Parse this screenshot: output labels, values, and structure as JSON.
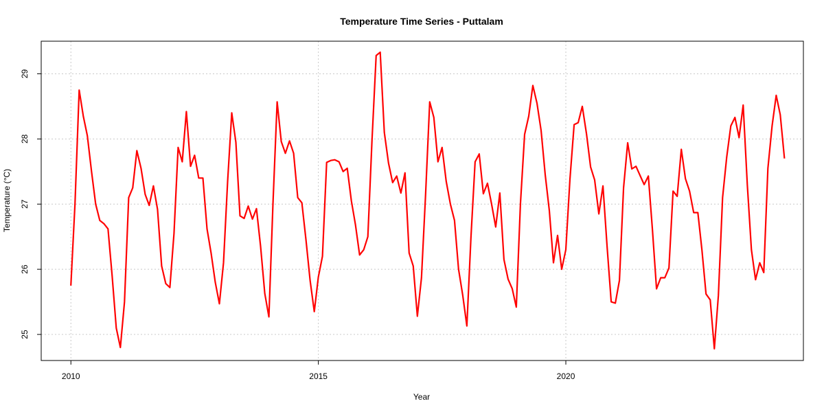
{
  "chart_data": {
    "type": "line",
    "title": "Temperature Time Series - Puttalam",
    "xlabel": "Year",
    "ylabel": "Temperature (°C)",
    "xlim": [
      2009.4,
      2024.8
    ],
    "ylim": [
      24.6,
      29.5
    ],
    "x_ticks": [
      2010,
      2015,
      2020
    ],
    "y_ticks": [
      25,
      26,
      27,
      28,
      29
    ],
    "grid": true,
    "line_color": "#ff0000",
    "series": [
      {
        "x": [
          2010.0,
          2010.083,
          2010.167,
          2010.25,
          2010.333,
          2010.417,
          2010.5,
          2010.583,
          2010.667,
          2010.75,
          2010.833,
          2010.917,
          2011.0,
          2011.083,
          2011.167,
          2011.25,
          2011.333,
          2011.417,
          2011.5,
          2011.583,
          2011.667,
          2011.75,
          2011.833,
          2011.917,
          2012.0,
          2012.083,
          2012.167,
          2012.25,
          2012.333,
          2012.417,
          2012.5,
          2012.583,
          2012.667,
          2012.75,
          2012.833,
          2012.917,
          2013.0,
          2013.083,
          2013.167,
          2013.25,
          2013.333,
          2013.417,
          2013.5,
          2013.583,
          2013.667,
          2013.75,
          2013.833,
          2013.917,
          2014.0,
          2014.083,
          2014.167,
          2014.25,
          2014.333,
          2014.417,
          2014.5,
          2014.583,
          2014.667,
          2014.75,
          2014.833,
          2014.917,
          2015.0,
          2015.083,
          2015.167,
          2015.25,
          2015.333,
          2015.417,
          2015.5,
          2015.583,
          2015.667,
          2015.75,
          2015.833,
          2015.917,
          2016.0,
          2016.083,
          2016.167,
          2016.25,
          2016.333,
          2016.417,
          2016.5,
          2016.583,
          2016.667,
          2016.75,
          2016.833,
          2016.917,
          2017.0,
          2017.083,
          2017.167,
          2017.25,
          2017.333,
          2017.417,
          2017.5,
          2017.583,
          2017.667,
          2017.75,
          2017.833,
          2017.917,
          2018.0,
          2018.083,
          2018.167,
          2018.25,
          2018.333,
          2018.417,
          2018.5,
          2018.583,
          2018.667,
          2018.75,
          2018.833,
          2018.917,
          2019.0,
          2019.083,
          2019.167,
          2019.25,
          2019.333,
          2019.417,
          2019.5,
          2019.583,
          2019.667,
          2019.75,
          2019.833,
          2019.917,
          2020.0,
          2020.083,
          2020.167,
          2020.25,
          2020.333,
          2020.417,
          2020.5,
          2020.583,
          2020.667,
          2020.75,
          2020.833,
          2020.917,
          2021.0,
          2021.083,
          2021.167,
          2021.25,
          2021.333,
          2021.417,
          2021.5,
          2021.583,
          2021.667,
          2021.75,
          2021.833,
          2021.917,
          2022.0,
          2022.083,
          2022.167,
          2022.25,
          2022.333,
          2022.417,
          2022.5,
          2022.583,
          2022.667,
          2022.75,
          2022.833,
          2022.917,
          2023.0,
          2023.083,
          2023.167,
          2023.25,
          2023.333,
          2023.417,
          2023.5,
          2023.583,
          2023.667,
          2023.75,
          2023.833,
          2023.917,
          2024.0,
          2024.083,
          2024.167,
          2024.25,
          2024.333,
          2024.417
        ],
        "y": [
          25.75,
          27.0,
          28.75,
          28.35,
          28.05,
          27.5,
          27.0,
          26.75,
          26.7,
          26.62,
          25.9,
          25.1,
          24.8,
          25.5,
          27.1,
          27.25,
          27.82,
          27.55,
          27.15,
          26.98,
          27.28,
          26.92,
          26.05,
          25.78,
          25.72,
          26.55,
          27.87,
          27.65,
          28.42,
          27.58,
          27.75,
          27.4,
          27.4,
          26.62,
          26.25,
          25.8,
          25.47,
          26.1,
          27.35,
          28.4,
          27.95,
          26.82,
          26.78,
          26.97,
          26.77,
          26.93,
          26.35,
          25.63,
          25.27,
          27.0,
          28.57,
          27.96,
          27.78,
          27.97,
          27.78,
          27.1,
          27.02,
          26.45,
          25.83,
          25.35,
          25.88,
          26.2,
          27.64,
          27.67,
          27.68,
          27.65,
          27.5,
          27.55,
          27.05,
          26.68,
          26.22,
          26.3,
          26.5,
          27.97,
          29.28,
          29.33,
          28.1,
          27.63,
          27.33,
          27.43,
          27.17,
          27.48,
          26.25,
          26.05,
          25.28,
          25.87,
          27.15,
          28.57,
          28.33,
          27.65,
          27.87,
          27.35,
          27.0,
          26.75,
          26.0,
          25.6,
          25.13,
          26.5,
          27.65,
          27.77,
          27.16,
          27.32,
          27.0,
          26.65,
          27.17,
          26.15,
          25.85,
          25.7,
          25.42,
          27.0,
          28.07,
          28.35,
          28.82,
          28.55,
          28.13,
          27.45,
          26.9,
          26.1,
          26.52,
          26.0,
          26.3,
          27.38,
          28.22,
          28.25,
          28.5,
          28.08,
          27.57,
          27.37,
          26.85,
          27.28,
          26.35,
          25.5,
          25.48,
          25.83,
          27.25,
          27.94,
          27.54,
          27.58,
          27.44,
          27.3,
          27.43,
          26.6,
          25.7,
          25.87,
          25.87,
          26.02,
          27.2,
          27.12,
          27.84,
          27.39,
          27.2,
          26.87,
          26.87,
          26.3,
          25.62,
          25.53,
          24.78,
          25.6,
          27.1,
          27.72,
          28.2,
          28.33,
          28.02,
          28.52,
          27.3,
          26.3,
          25.84,
          26.1,
          25.95,
          27.55,
          28.2,
          28.67,
          28.37,
          27.7
        ]
      }
    ]
  }
}
